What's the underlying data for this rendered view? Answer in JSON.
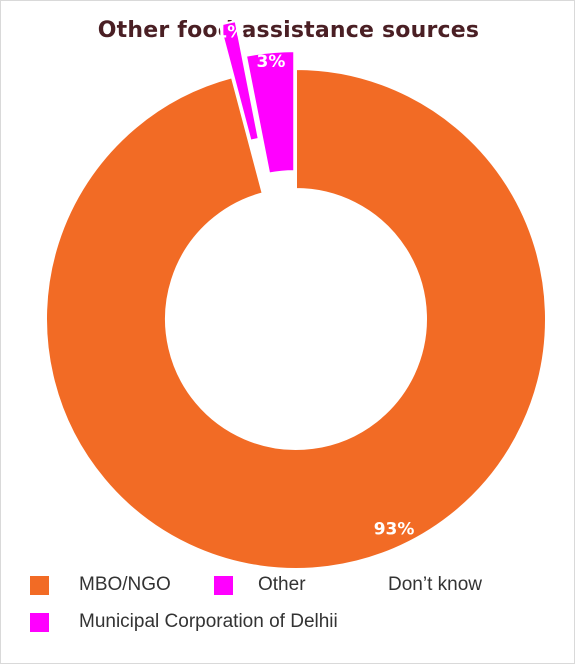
{
  "chart_data": {
    "type": "pie",
    "title": "Other food assistance sources",
    "series": [
      {
        "name": "MBO/NGO",
        "value": 93,
        "label": "93%",
        "color": "#f26b25"
      },
      {
        "name": "Other",
        "value": 0,
        "label": "",
        "color": "#ff00ff"
      },
      {
        "name": "Don’t know",
        "value": 0,
        "label": "",
        "color": "#ffffff"
      },
      {
        "name": "Municipal Corporation of Delhii",
        "value": 1,
        "label": "1%",
        "color": "#ff00ff"
      },
      {
        "name": "Other",
        "value": 3,
        "label": "3%",
        "color": "#ff00ff"
      }
    ],
    "legend": {
      "placement": "bottom",
      "items": [
        {
          "label": "MBO/NGO",
          "color": "#f26b25"
        },
        {
          "label": "Other",
          "color": "#ff00ff"
        },
        {
          "label": "Don’t know",
          "color": "#ffffff"
        },
        {
          "label": "Municipal Corporation of Delhii",
          "color": "#ff00ff"
        }
      ]
    }
  }
}
